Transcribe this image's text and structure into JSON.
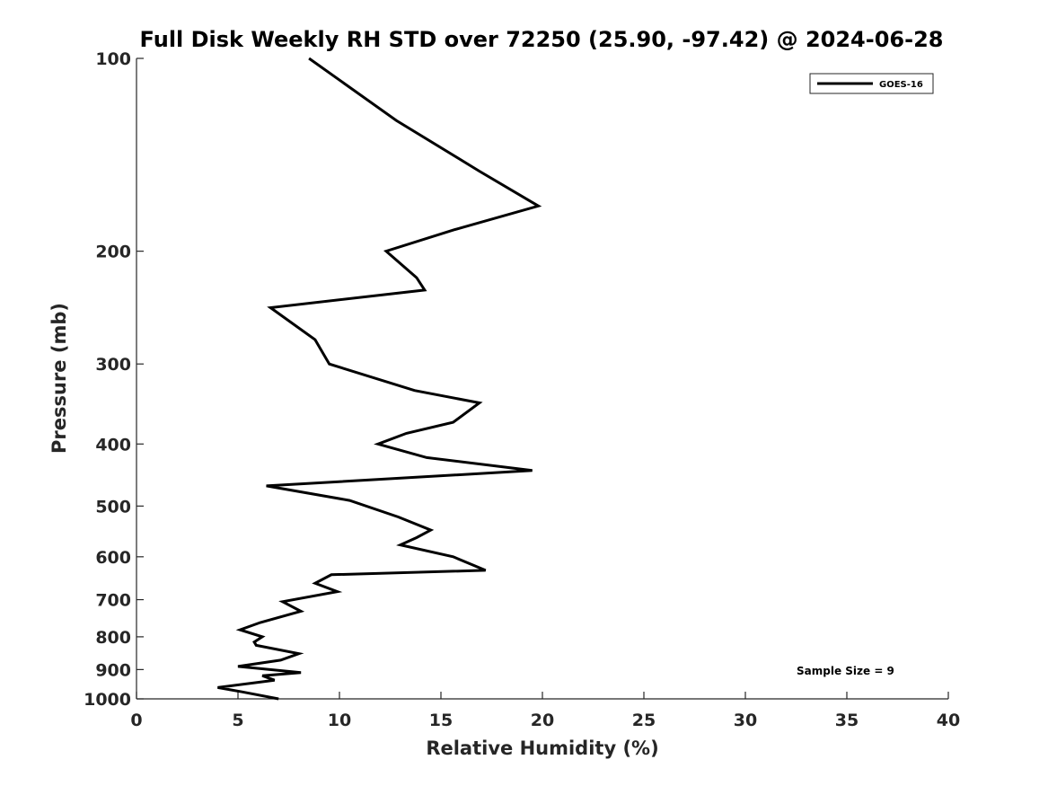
{
  "chart_data": {
    "type": "line",
    "title": "Full Disk Weekly RH STD over 72250 (25.90, -97.42) @ 2024-06-28",
    "xlabel": "Relative Humidity (%)",
    "ylabel": "Pressure (mb)",
    "xlim": [
      0,
      40
    ],
    "ylim": [
      100,
      1000
    ],
    "yscale": "log",
    "y_reversed": true,
    "x_ticks": [
      0,
      5,
      10,
      15,
      20,
      25,
      30,
      35,
      40
    ],
    "y_ticks": [
      100,
      200,
      300,
      400,
      500,
      600,
      700,
      800,
      900,
      1000
    ],
    "x_tick_labels": [
      "0",
      "5",
      "10",
      "15",
      "20",
      "25",
      "30",
      "35",
      "40"
    ],
    "y_tick_labels": [
      "100",
      "200",
      "300",
      "400",
      "500",
      "600",
      "700",
      "800",
      "900",
      "1000"
    ],
    "legend_position": "top-right",
    "grid": false,
    "annotation": "Sample Size = 9",
    "series": [
      {
        "name": "GOES-16",
        "color": "#000000",
        "x": [
          8.5,
          12.8,
          16.9,
          19.8,
          15.7,
          12.3,
          13.8,
          14.2,
          6.6,
          8.8,
          9.5,
          13.7,
          16.9,
          15.6,
          13.3,
          11.9,
          14.3,
          19.5,
          6.4,
          10.5,
          12.9,
          14.5,
          13.8,
          13.0,
          15.6,
          17.2,
          9.6,
          8.8,
          9.9,
          7.2,
          8.1,
          6.1,
          5.1,
          6.2,
          5.8,
          5.9,
          8.0,
          7.1,
          5.0,
          8.1,
          6.2,
          6.8,
          4.0,
          5.2,
          7.0
        ],
        "y": [
          100,
          125,
          150,
          170,
          185,
          200,
          220,
          230,
          245,
          275,
          300,
          330,
          345,
          370,
          385,
          400,
          420,
          440,
          465,
          490,
          520,
          545,
          560,
          575,
          600,
          630,
          640,
          660,
          680,
          705,
          730,
          760,
          780,
          800,
          815,
          825,
          850,
          870,
          890,
          910,
          920,
          935,
          960,
          975,
          1000
        ]
      }
    ]
  }
}
